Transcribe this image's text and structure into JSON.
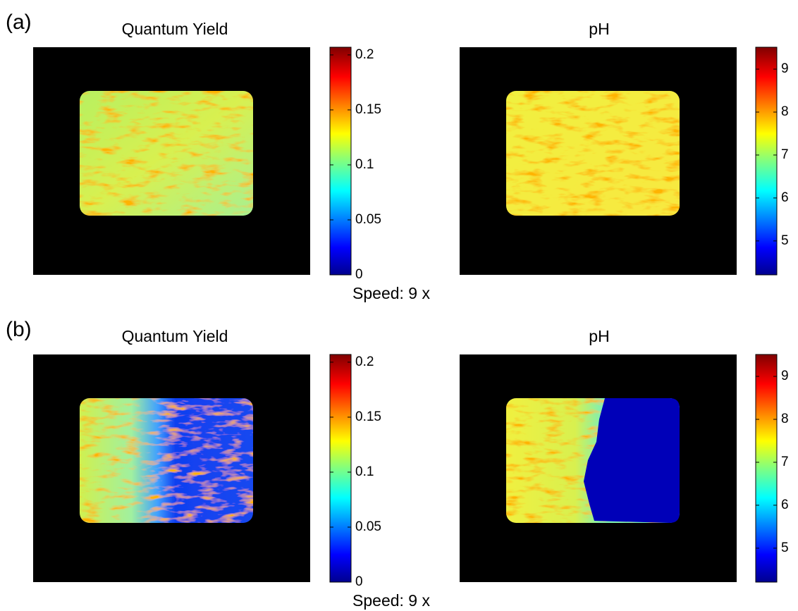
{
  "panels": [
    {
      "label": "(a)",
      "caption": "Speed: 9 x",
      "plots": [
        {
          "title": "Quantum Yield",
          "colorbar": {
            "range": [
              0,
              0.207
            ],
            "ticks": [
              0,
              0.05,
              0.1,
              0.15,
              0.2
            ]
          }
        },
        {
          "title": "pH",
          "colorbar": {
            "range": [
              4.21,
              9.51
            ],
            "ticks": [
              5,
              6,
              7,
              8,
              9
            ]
          }
        }
      ]
    },
    {
      "label": "(b)",
      "caption": "Speed: 9 x",
      "plots": [
        {
          "title": "Quantum Yield",
          "colorbar": {
            "range": [
              0,
              0.207
            ],
            "ticks": [
              0,
              0.05,
              0.1,
              0.15,
              0.2
            ]
          }
        },
        {
          "title": "pH",
          "colorbar": {
            "range": [
              4.21,
              9.51
            ],
            "ticks": [
              5,
              6,
              7,
              8,
              9
            ]
          }
        }
      ]
    }
  ]
}
